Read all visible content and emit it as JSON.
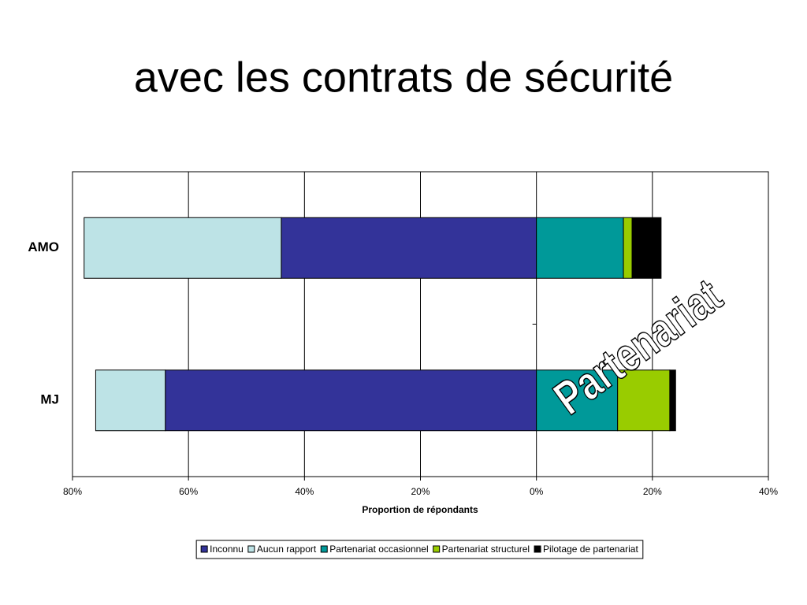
{
  "chart_data": {
    "type": "diverging_bar",
    "title": "avec les contrats de sécurité",
    "categories": [
      "AMO",
      "MJ"
    ],
    "series": [
      {
        "name": "Inconnu",
        "color": "#333399",
        "values": [
          -44,
          -64
        ]
      },
      {
        "name": "Aucun rapport",
        "color": "#bde3e6",
        "values": [
          -34,
          -12
        ]
      },
      {
        "name": "Partenariat occasionnel",
        "color": "#009999",
        "values": [
          15,
          14
        ]
      },
      {
        "name": "Partenariat structurel",
        "color": "#99cc00",
        "values": [
          1.5,
          9
        ]
      },
      {
        "name": "Pilotage de partenariat",
        "color": "#000000",
        "values": [
          5,
          1
        ]
      }
    ],
    "xlabel": "Proportion de répondants",
    "xlim": [
      -80,
      40
    ],
    "xticks": [
      {
        "value": -80,
        "label": "80%"
      },
      {
        "value": -60,
        "label": "60%"
      },
      {
        "value": -40,
        "label": "40%"
      },
      {
        "value": -20,
        "label": "20%"
      },
      {
        "value": 0,
        "label": "0%"
      },
      {
        "value": 20,
        "label": "20%"
      },
      {
        "value": 40,
        "label": "40%"
      }
    ],
    "grid": true,
    "legend": "bottom",
    "annotation": "Partenariat"
  }
}
